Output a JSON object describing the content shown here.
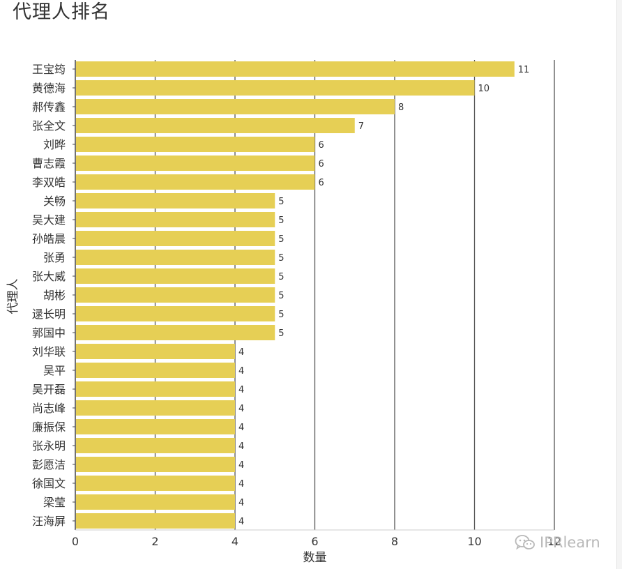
{
  "title": "代理人排名",
  "watermark": {
    "text": "IPRlearn",
    "icon": "wechat-icon"
  },
  "chart_data": {
    "type": "bar",
    "orientation": "horizontal",
    "title": "代理人排名",
    "xlabel": "数量",
    "ylabel": "代理人",
    "xlim": [
      0,
      12
    ],
    "xticks": [
      0,
      2,
      4,
      6,
      8,
      10,
      12
    ],
    "grid": true,
    "bar_color": "#e6cf55",
    "categories": [
      "王宝筠",
      "黄德海",
      "郝传鑫",
      "张全文",
      "刘晔",
      "曹志霞",
      "李双皓",
      "关畅",
      "吴大建",
      "孙皓晨",
      "张勇",
      "张大威",
      "胡彬",
      "逯长明",
      "郭国中",
      "刘华联",
      "吴平",
      "吴开磊",
      "尚志峰",
      "廉振保",
      "张永明",
      "彭愿洁",
      "徐国文",
      "梁莹",
      "汪海屏"
    ],
    "values": [
      11,
      10,
      8,
      7,
      6,
      6,
      6,
      5,
      5,
      5,
      5,
      5,
      5,
      5,
      5,
      4,
      4,
      4,
      4,
      4,
      4,
      4,
      4,
      4,
      4
    ]
  }
}
